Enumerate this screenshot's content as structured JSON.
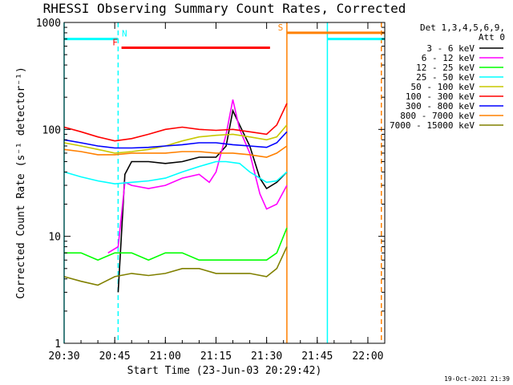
{
  "chart_data": {
    "type": "line",
    "title": "RHESSI Observing Summary Count Rates, Corrected",
    "xlabel": "Start Time (23-Jun-03 20:29:42)",
    "ylabel": "Corrected Count Rate (s⁻¹ detector⁻¹)",
    "y_scale": "log",
    "ylim": [
      1,
      1000
    ],
    "xlim": [
      "20:30",
      "22:05"
    ],
    "x_tick_labels": [
      "20:30",
      "20:45",
      "21:00",
      "21:15",
      "21:30",
      "21:45",
      "22:00"
    ],
    "y_tick_labels": [
      "1",
      "10",
      "100",
      "1000"
    ],
    "footer": "19-Oct-2021 21:39",
    "legend": {
      "placement": "right",
      "header": [
        "Det 1,3,4,5,6,9,",
        "Att 0"
      ]
    },
    "series": [
      {
        "name": "3 - 6 keV",
        "color": "#000000",
        "x": [
          "20:46",
          "20:48",
          "20:50",
          "20:55",
          "21:00",
          "21:05",
          "21:10",
          "21:15",
          "21:18",
          "21:20",
          "21:22",
          "21:25",
          "21:28",
          "21:30",
          "21:33",
          "21:36"
        ],
        "values": [
          3,
          38,
          50,
          50,
          48,
          50,
          55,
          55,
          70,
          150,
          110,
          70,
          35,
          28,
          32,
          40
        ]
      },
      {
        "name": "6 - 12 keV",
        "color": "#ff00ff",
        "x": [
          "20:43",
          "20:46",
          "20:48",
          "20:50",
          "20:55",
          "21:00",
          "21:05",
          "21:10",
          "21:13",
          "21:15",
          "21:18",
          "21:20",
          "21:22",
          "21:25",
          "21:28",
          "21:30",
          "21:33",
          "21:36"
        ],
        "values": [
          7,
          8,
          32,
          30,
          28,
          30,
          35,
          38,
          32,
          40,
          90,
          190,
          100,
          60,
          25,
          18,
          20,
          30
        ]
      },
      {
        "name": "12 - 25 keV",
        "color": "#00ff00",
        "x": [
          "20:30",
          "20:35",
          "20:40",
          "20:45",
          "20:50",
          "20:55",
          "21:00",
          "21:05",
          "21:10",
          "21:15",
          "21:20",
          "21:25",
          "21:30",
          "21:33",
          "21:36"
        ],
        "values": [
          7,
          7,
          6,
          7,
          7,
          6,
          7,
          7,
          6,
          6,
          6,
          6,
          6,
          7,
          12
        ]
      },
      {
        "name": "25 - 50 keV",
        "color": "#00ffff",
        "x": [
          "20:30",
          "20:35",
          "20:40",
          "20:45",
          "20:50",
          "20:55",
          "21:00",
          "21:05",
          "21:10",
          "21:15",
          "21:18",
          "21:22",
          "21:25",
          "21:30",
          "21:33",
          "21:36"
        ],
        "values": [
          40,
          36,
          33,
          31,
          32,
          33,
          35,
          40,
          45,
          50,
          50,
          48,
          40,
          32,
          33,
          40
        ]
      },
      {
        "name": "50 - 100 keV",
        "color": "#c8c800",
        "x": [
          "20:30",
          "20:35",
          "20:40",
          "20:45",
          "20:50",
          "20:55",
          "21:00",
          "21:05",
          "21:10",
          "21:15",
          "21:20",
          "21:25",
          "21:30",
          "21:33",
          "21:36"
        ],
        "values": [
          75,
          70,
          65,
          60,
          62,
          65,
          70,
          78,
          85,
          88,
          90,
          85,
          80,
          85,
          110
        ]
      },
      {
        "name": "100 - 300 keV",
        "color": "#ff0000",
        "x": [
          "20:30",
          "20:35",
          "20:40",
          "20:45",
          "20:50",
          "20:55",
          "21:00",
          "21:05",
          "21:10",
          "21:15",
          "21:20",
          "21:25",
          "21:30",
          "21:33",
          "21:36"
        ],
        "values": [
          105,
          95,
          85,
          78,
          82,
          90,
          100,
          105,
          100,
          98,
          100,
          95,
          90,
          110,
          175
        ]
      },
      {
        "name": "300 - 800 keV",
        "color": "#0000ff",
        "x": [
          "20:30",
          "20:35",
          "20:40",
          "20:45",
          "20:50",
          "20:55",
          "21:00",
          "21:05",
          "21:10",
          "21:15",
          "21:20",
          "21:25",
          "21:30",
          "21:33",
          "21:36"
        ],
        "values": [
          80,
          75,
          70,
          67,
          67,
          68,
          70,
          72,
          75,
          75,
          72,
          70,
          68,
          75,
          95
        ]
      },
      {
        "name": "800 - 7000 keV",
        "color": "#ff8000",
        "x": [
          "20:30",
          "20:35",
          "20:40",
          "20:45",
          "20:50",
          "20:55",
          "21:00",
          "21:05",
          "21:10",
          "21:15",
          "21:20",
          "21:25",
          "21:30",
          "21:33",
          "21:36"
        ],
        "values": [
          65,
          62,
          58,
          58,
          60,
          60,
          60,
          62,
          62,
          60,
          60,
          58,
          55,
          60,
          70
        ]
      },
      {
        "name": "7000 - 15000 keV",
        "color": "#808000",
        "x": [
          "20:30",
          "20:35",
          "20:40",
          "20:45",
          "20:50",
          "20:55",
          "21:00",
          "21:05",
          "21:10",
          "21:15",
          "21:20",
          "21:25",
          "21:30",
          "21:33",
          "21:36"
        ],
        "values": [
          4.2,
          3.8,
          3.5,
          4.2,
          4.5,
          4.3,
          4.5,
          5.0,
          5.0,
          4.5,
          4.5,
          4.5,
          4.2,
          5.0,
          8.0
        ]
      }
    ],
    "flag_bars": [
      {
        "label": "N",
        "color": "#00ffff",
        "start": "20:30",
        "end": "20:46",
        "y": 700
      },
      {
        "label": "",
        "color": "#00ffff",
        "start": "21:48",
        "end": "22:05",
        "y": 700
      },
      {
        "label": "F",
        "color": "#ff0000",
        "start": "20:47",
        "end": "21:31",
        "y": 580
      },
      {
        "label": "S",
        "color": "#ff8000",
        "start": "21:36",
        "end": "22:05",
        "y": 800
      }
    ],
    "marker_lines": [
      {
        "x": "20:30",
        "color": "#00ffff",
        "style": "solid"
      },
      {
        "x": "20:46",
        "color": "#00ffff",
        "style": "dashed"
      },
      {
        "x": "21:36",
        "color": "#ff8000",
        "style": "solid"
      },
      {
        "x": "21:48",
        "color": "#00ffff",
        "style": "solid"
      },
      {
        "x": "22:04",
        "color": "#ff8000",
        "style": "dashed"
      }
    ]
  }
}
